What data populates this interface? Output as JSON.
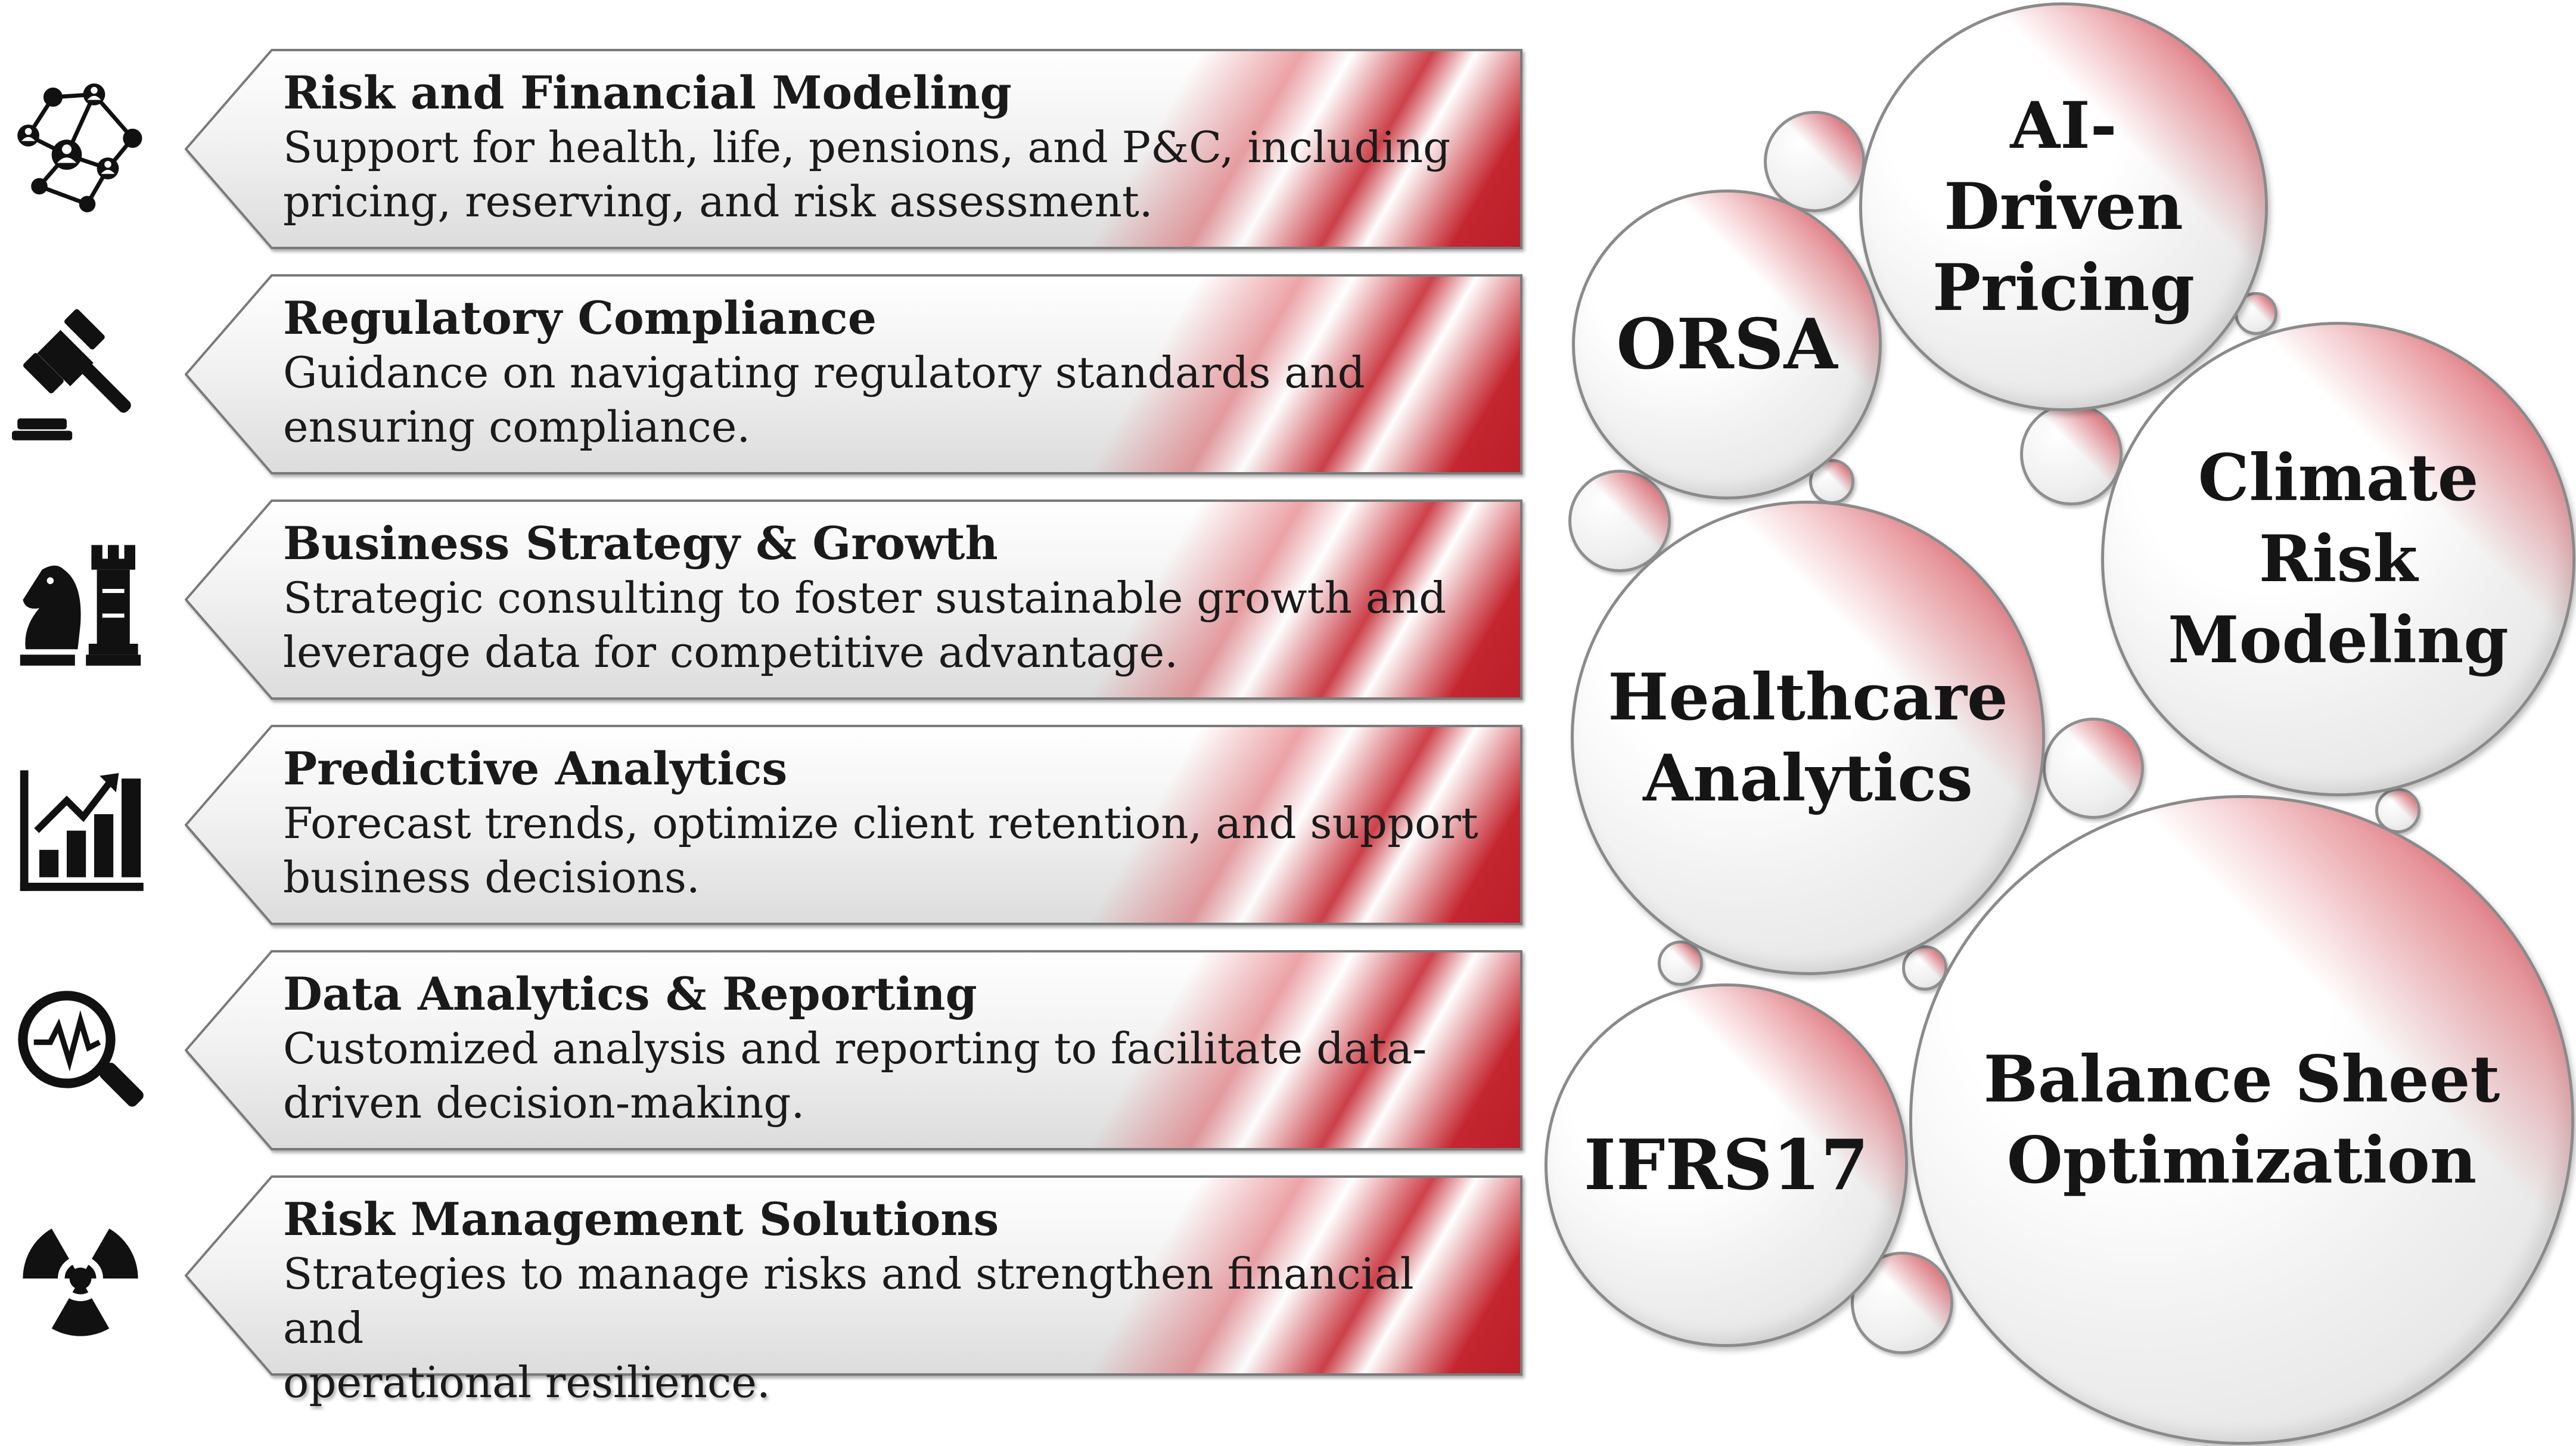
{
  "services": [
    {
      "icon": "network-people-icon",
      "title": "Risk and Financial Modeling",
      "description_lines": [
        "Support for health, life, pensions, and P&C, including",
        "pricing, reserving, and risk assessment."
      ]
    },
    {
      "icon": "gavel-icon",
      "title": "Regulatory Compliance",
      "description_lines": [
        "Guidance on navigating regulatory standards and",
        "ensuring compliance."
      ]
    },
    {
      "icon": "chess-pieces-icon",
      "title": "Business Strategy & Growth",
      "description_lines": [
        "Strategic consulting to foster sustainable growth and",
        "leverage data for competitive advantage."
      ]
    },
    {
      "icon": "growth-chart-icon",
      "title": "Predictive Analytics",
      "description_lines": [
        "Forecast trends, optimize client retention, and support",
        "business decisions."
      ]
    },
    {
      "icon": "magnifier-pulse-icon",
      "title": "Data Analytics & Reporting",
      "description_lines": [
        "Customized analysis and reporting to facilitate data-",
        "driven decision-making."
      ]
    },
    {
      "icon": "radiation-hazard-icon",
      "title": "Risk Management Solutions",
      "description_lines": [
        "Strategies to manage risks and strengthen financial and",
        "operational resilience."
      ]
    }
  ],
  "bubbles": [
    {
      "id": "ai-driven-pricing",
      "lines": [
        "AI-",
        "Driven",
        "Pricing"
      ]
    },
    {
      "id": "orsa",
      "lines": [
        "ORSA"
      ]
    },
    {
      "id": "climate-risk-modeling",
      "lines": [
        "Climate",
        "Risk",
        "Modeling"
      ]
    },
    {
      "id": "healthcare-analytics",
      "lines": [
        "Healthcare",
        "Analytics"
      ]
    },
    {
      "id": "ifrs17",
      "lines": [
        "IFRS17"
      ]
    },
    {
      "id": "balance-sheet-optimization",
      "lines": [
        "Balance Sheet",
        "Optimization"
      ]
    }
  ],
  "colors": {
    "accent_red": "#c8303c",
    "text": "#1a1a1a",
    "border": "#8a8a8a"
  }
}
